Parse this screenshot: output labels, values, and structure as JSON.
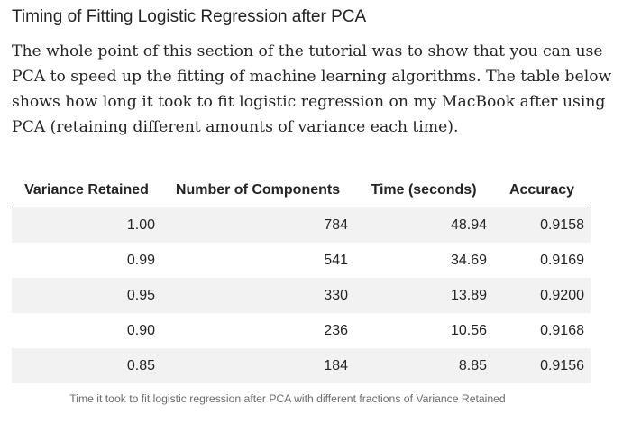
{
  "section": {
    "heading": "Timing of Fitting Logistic Regression after PCA",
    "paragraph": "The whole point of this section of the tutorial was to show that you can use PCA to speed up the fitting of machine learning algorithms. The table below shows how long it took to fit logistic regression on my MacBook after using PCA (retaining different amounts of variance each time)."
  },
  "table": {
    "headers": [
      "Variance Retained",
      "Number of Components",
      "Time (seconds)",
      "Accuracy"
    ],
    "rows": [
      [
        "1.00",
        "784",
        "48.94",
        "0.9158"
      ],
      [
        "0.99",
        "541",
        "34.69",
        "0.9169"
      ],
      [
        "0.95",
        "330",
        "13.89",
        "0.9200"
      ],
      [
        "0.90",
        "236",
        "10.56",
        "0.9168"
      ],
      [
        "0.85",
        "184",
        "8.85",
        "0.9156"
      ]
    ],
    "caption": "Time it took to fit logistic regression after PCA with different fractions of Variance Retained"
  }
}
